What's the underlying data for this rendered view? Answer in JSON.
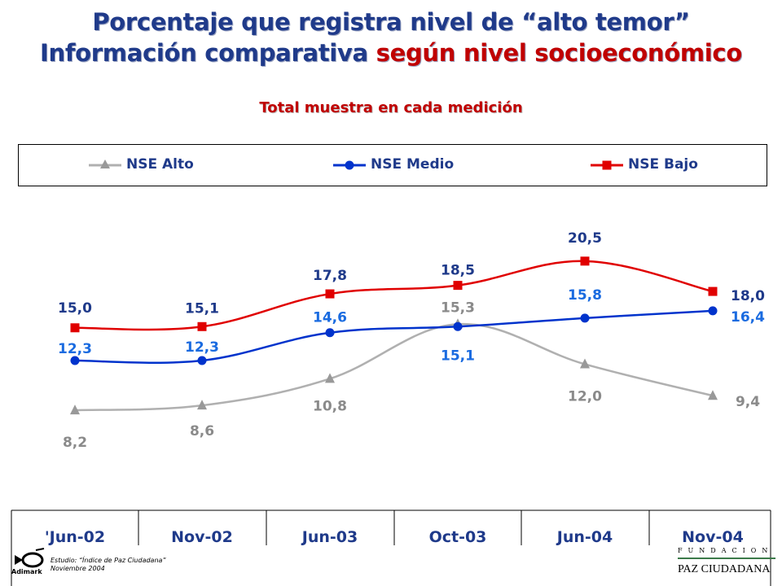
{
  "title_line1": "Porcentaje que registra nivel de “alto temor”",
  "title_line2_part1": "Información comparativa ",
  "title_line2_part2": "según nivel socioeconómico",
  "subtitle": "Total muestra en cada medición",
  "colors": {
    "title": "#1f3a8a",
    "accent": "#c00000",
    "alto": "#b0b0b0",
    "medio": "#0033cc",
    "bajo": "#e00000"
  },
  "footer": {
    "study": "Estudio: “Índice de Paz Ciudadana”",
    "date": "Noviembre 2004",
    "brand": "Adimark"
  },
  "logo": {
    "fundacion": "FUNDACION",
    "name": "PAZ CIUDADANA"
  },
  "chart_data": {
    "type": "line",
    "categories": [
      "'Jun-02",
      "Nov-02",
      "Jun-03",
      "Oct-03",
      "Jun-04",
      "Nov-04"
    ],
    "legend_position": "top",
    "grid": false,
    "series": [
      {
        "name": "NSE Alto",
        "marker": "triangle",
        "values": [
          8.2,
          8.6,
          10.8,
          15.3,
          12.0,
          9.4
        ],
        "labels": [
          "8,2",
          "8,6",
          "10,8",
          "15,3",
          "12,0",
          "9,4"
        ]
      },
      {
        "name": "NSE Medio",
        "marker": "circle",
        "values": [
          12.3,
          12.3,
          14.6,
          15.1,
          15.8,
          16.4
        ],
        "labels": [
          "12,3",
          "12,3",
          "14,6",
          "15,1",
          "15,8",
          "16,4"
        ]
      },
      {
        "name": "NSE Bajo",
        "marker": "square",
        "values": [
          15.0,
          15.1,
          17.8,
          18.5,
          20.5,
          18.0
        ],
        "labels": [
          "15,0",
          "15,1",
          "17,8",
          "18,5",
          "20,5",
          "18,0"
        ]
      }
    ]
  }
}
